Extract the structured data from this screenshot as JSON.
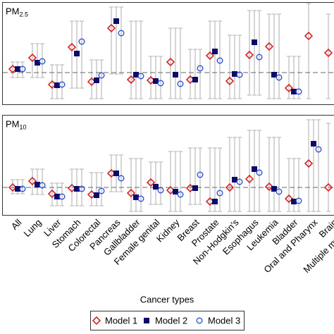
{
  "categories": [
    "All",
    "Lung",
    "Liver",
    "Stomach",
    "Colorectal",
    "Pancreas",
    "Gallbladder",
    "Female genital",
    "Kidney",
    "Breast",
    "Prostate",
    "Non-Hodgkin's",
    "Esophagus",
    "Leukemia",
    "Bladder",
    "Oral and Pharynx",
    "Brain",
    "Multiple myeloma"
  ],
  "xlabel": "Cancer types",
  "legend": {
    "position": "bottom"
  },
  "chart_data": [
    {
      "type": "errorpoint",
      "title": "PM",
      "title_sub": "2.5",
      "ylim": [
        0.91,
        1.2
      ],
      "refline": 1,
      "series": [
        {
          "name": "Model 1",
          "color": "#d62728",
          "marker": "diamond",
          "values": [
            1.01,
            1.042,
            0.966,
            1.072,
            0.974,
            1.126,
            0.98,
            0.978,
            1.03,
            0.98,
            1.048,
            0.976,
            1.05,
            1.074,
            0.956,
            1.104,
            1.056,
            null
          ],
          "lower": [
            0.986,
            0.986,
            0.926,
            0.956,
            0.926,
            0.996,
            0.926,
            0.926,
            0.926,
            0.926,
            0.926,
            0.926,
            0.936,
            0.926,
            0.926,
            0.926,
            0.926,
            null
          ],
          "upper": [
            1.03,
            1.082,
            1.022,
            1.146,
            1.036,
            1.186,
            1.146,
            1.046,
            1.126,
            1.066,
            1.146,
            1.106,
            1.176,
            1.166,
            1.046,
            1.196,
            1.166,
            null
          ]
        },
        {
          "name": "Model 2",
          "color": "#0b0b6b",
          "marker": "square",
          "values": [
            1.01,
            1.028,
            0.964,
            1.054,
            0.978,
            1.146,
            0.994,
            0.976,
            0.994,
            0.98,
            1.06,
            0.996,
            1.086,
            0.994,
            0.946,
            null,
            null,
            null
          ],
          "lower": [
            0.986,
            0.986,
            0.926,
            0.956,
            0.926,
            0.996,
            0.926,
            0.926,
            0.926,
            0.926,
            0.926,
            0.926,
            0.936,
            0.926,
            0.926,
            null,
            null,
            null
          ],
          "upper": [
            1.03,
            1.082,
            1.022,
            1.146,
            1.036,
            1.186,
            1.146,
            1.046,
            1.126,
            1.066,
            1.146,
            1.106,
            1.176,
            1.166,
            1.046,
            null,
            null,
            null
          ]
        },
        {
          "name": "Model 3",
          "color": "#3050d0",
          "marker": "circle",
          "values": [
            1.01,
            1.032,
            0.966,
            1.088,
            0.992,
            1.112,
            0.99,
            0.97,
            0.968,
            1.012,
            1.034,
            0.994,
            1.044,
            0.986,
            0.946,
            null,
            null,
            null
          ],
          "lower": [
            0.986,
            0.986,
            0.926,
            0.956,
            0.926,
            0.996,
            0.926,
            0.926,
            0.926,
            0.926,
            0.926,
            0.926,
            0.936,
            0.926,
            0.926,
            null,
            null,
            null
          ],
          "upper": [
            1.03,
            1.082,
            1.022,
            1.146,
            1.036,
            1.186,
            1.146,
            1.046,
            1.126,
            1.066,
            1.146,
            1.106,
            1.176,
            1.166,
            1.046,
            null,
            null,
            null
          ]
        }
      ]
    },
    {
      "type": "errorpoint",
      "title": "PM",
      "title_sub": "10",
      "ylim": [
        0.922,
        1.206
      ],
      "refline": 1,
      "series": [
        {
          "color": "#d62728",
          "marker": "diamond",
          "values": [
            1.0,
            1.018,
            0.982,
            0.998,
            0.98,
            1.04,
            0.984,
            1.014,
            0.992,
            0.998,
            0.96,
            1.0,
            1.024,
            1.002,
            0.968,
            1.068,
            1.0,
            null
          ],
          "lower": [
            0.982,
            0.98,
            0.948,
            0.948,
            0.948,
            0.988,
            0.932,
            0.952,
            0.932,
            0.952,
            0.932,
            0.932,
            0.932,
            0.932,
            0.932,
            0.932,
            0.932,
            null
          ],
          "upper": [
            1.022,
            1.052,
            1.012,
            1.052,
            1.042,
            1.092,
            1.082,
            1.072,
            1.102,
            1.112,
            1.112,
            1.142,
            1.162,
            1.142,
            1.082,
            1.192,
            1.182,
            null
          ]
        },
        {
          "color": "#0b0b6b",
          "marker": "square",
          "values": [
            0.996,
            1.008,
            0.974,
            0.996,
            0.978,
            1.04,
            0.972,
            1.002,
            0.988,
            0.998,
            0.96,
            1.022,
            1.052,
            0.996,
            0.96,
            1.124,
            null,
            null
          ],
          "lower": [
            0.982,
            0.98,
            0.948,
            0.948,
            0.948,
            0.988,
            0.932,
            0.952,
            0.932,
            0.952,
            0.932,
            0.932,
            0.932,
            0.932,
            0.932,
            0.932,
            null,
            null
          ],
          "upper": [
            1.022,
            1.052,
            1.012,
            1.052,
            1.042,
            1.092,
            1.082,
            1.072,
            1.102,
            1.112,
            1.112,
            1.142,
            1.162,
            1.142,
            1.082,
            1.192,
            null,
            null
          ]
        },
        {
          "color": "#3050d0",
          "marker": "circle",
          "values": [
            0.996,
            1.006,
            0.974,
            0.996,
            0.99,
            1.026,
            0.968,
            0.992,
            0.98,
            1.036,
            0.984,
            1.016,
            1.042,
            0.988,
            0.962,
            1.108,
            null,
            null
          ],
          "lower": [
            0.982,
            0.98,
            0.948,
            0.948,
            0.948,
            0.988,
            0.932,
            0.952,
            0.932,
            0.952,
            0.932,
            0.932,
            0.932,
            0.932,
            0.932,
            0.932,
            null,
            null
          ],
          "upper": [
            1.022,
            1.052,
            1.012,
            1.052,
            1.042,
            1.092,
            1.082,
            1.072,
            1.102,
            1.112,
            1.112,
            1.142,
            1.162,
            1.142,
            1.082,
            1.192,
            null,
            null
          ]
        }
      ]
    }
  ]
}
